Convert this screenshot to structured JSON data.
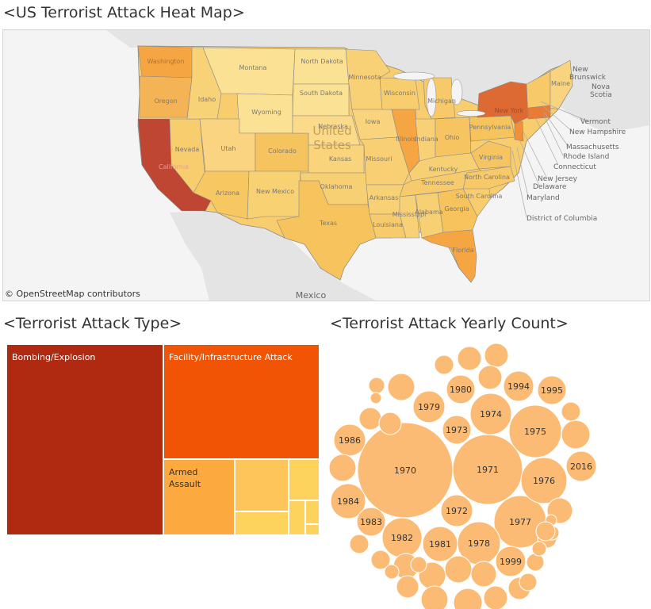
{
  "titles": {
    "map": "<US Terrorist Attack Heat Map>",
    "treemap": "<Terrorist Attack Type>",
    "bubbles": "<Terrorist Attack Yearly Count>"
  },
  "map": {
    "attribution": "© OpenStreetMap contributors",
    "country_labels": [
      "United",
      "States"
    ],
    "mexico_label": "Mexico",
    "canada_labels": [
      "New",
      "Brunswick",
      "Nova",
      "Scotia"
    ],
    "state_labels": [
      "Washington",
      "Oregon",
      "Idaho",
      "Montana",
      "Wyoming",
      "Nevada",
      "Utah",
      "Colorado",
      "Arizona",
      "New Mexico",
      "North Dakota",
      "South Dakota",
      "Nebraska",
      "Kansas",
      "Oklahoma",
      "Texas",
      "Minnesota",
      "Iowa",
      "Missouri",
      "Arkansas",
      "Louisiana",
      "Wisconsin",
      "Illinois",
      "Michigan",
      "Indiana",
      "Ohio",
      "Kentucky",
      "Tennessee",
      "Mississippi",
      "Alabama",
      "Georgia",
      "Florida",
      "South Carolina",
      "North Carolina",
      "Virginia",
      "Pennsylvania",
      "New York",
      "Maine",
      "California"
    ],
    "callout_labels": [
      "Vermont",
      "New Hampshire",
      "Massachusetts",
      "Rhode Island",
      "Connecticut",
      "New Jersey",
      "Delaware",
      "Maryland",
      "District of Columbia"
    ],
    "colors": {
      "highest": "#bf4633",
      "high": "#dd6a32",
      "mid": "#f5a642",
      "low": "#f7cd6e",
      "lowest": "#fbe193"
    }
  },
  "chart_data": [
    {
      "type": "treemap",
      "title": "<Terrorist Attack Type>",
      "items": [
        {
          "label": "Bombing/Explosion",
          "color": "#b02a12"
        },
        {
          "label": "Facility/Infrastructure Attack",
          "color": "#f25405"
        },
        {
          "label": "Armed Assault",
          "color": "#fca93f"
        },
        {
          "label": "",
          "color": "#fec55b"
        },
        {
          "label": "",
          "color": "#fdd25d"
        },
        {
          "label": "",
          "color": "#fdd25d"
        },
        {
          "label": "",
          "color": "#fdd25d"
        },
        {
          "label": "",
          "color": "#fdd25d"
        },
        {
          "label": "",
          "color": "#fdd25d"
        }
      ]
    },
    {
      "type": "bubble",
      "title": "<Terrorist Attack Yearly Count>",
      "color": "#fbbb74",
      "labeled_years": [
        "1970",
        "1971",
        "1975",
        "1977",
        "1976",
        "1974",
        "1972",
        "1978",
        "1982",
        "1984",
        "1973",
        "1980",
        "1994",
        "1995",
        "2016",
        "1986",
        "1979",
        "1981",
        "1983",
        "1999"
      ]
    }
  ]
}
